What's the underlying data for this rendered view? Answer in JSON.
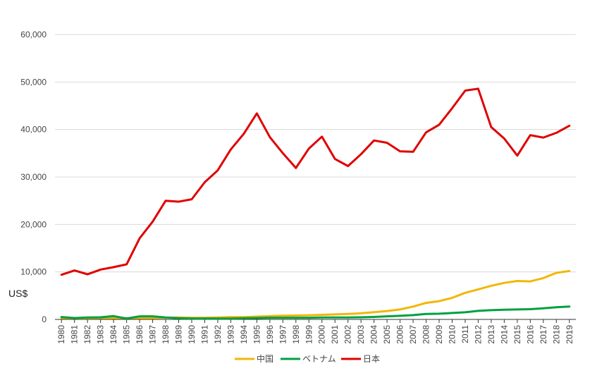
{
  "chart_data": {
    "type": "line",
    "title": "",
    "xlabel": "",
    "ylabel": "US$",
    "ylim": [
      0,
      60000
    ],
    "yticks": [
      0,
      10000,
      20000,
      30000,
      40000,
      50000,
      60000
    ],
    "ytick_labels": [
      "0",
      "10,000",
      "20,000",
      "30,000",
      "40,000",
      "50,000",
      "60,000"
    ],
    "grid": "horizontal",
    "legend": "bottom-center",
    "x": [
      "1980",
      "1981",
      "1982",
      "1983",
      "1984",
      "1985",
      "1986",
      "1987",
      "1988",
      "1989",
      "1990",
      "1991",
      "1992",
      "1993",
      "1994",
      "1995",
      "1996",
      "1997",
      "1998",
      "1999",
      "2000",
      "2001",
      "2002",
      "2003",
      "2004",
      "2005",
      "2006",
      "2007",
      "2008",
      "2009",
      "2010",
      "2011",
      "2012",
      "2013",
      "2014",
      "2015",
      "2016",
      "2017",
      "2018",
      "2019"
    ],
    "series": [
      {
        "name": "中国",
        "color": "#F2B705",
        "values": [
          300,
          280,
          280,
          300,
          300,
          300,
          290,
          300,
          370,
          410,
          350,
          360,
          420,
          500,
          470,
          600,
          700,
          780,
          830,
          880,
          960,
          1050,
          1150,
          1290,
          1510,
          1760,
          2100,
          2700,
          3480,
          3850,
          4550,
          5600,
          6330,
          7080,
          7700,
          8100,
          8000,
          8700,
          9800,
          10200
        ]
      },
      {
        "name": "ベトナム",
        "color": "#00A040",
        "values": [
          500,
          300,
          400,
          450,
          700,
          200,
          650,
          650,
          400,
          250,
          200,
          200,
          200,
          200,
          250,
          300,
          350,
          350,
          350,
          350,
          400,
          400,
          420,
          450,
          520,
          650,
          750,
          900,
          1150,
          1200,
          1350,
          1500,
          1800,
          1950,
          2050,
          2100,
          2150,
          2350,
          2550,
          2700
        ]
      },
      {
        "name": "日本",
        "color": "#E00000",
        "values": [
          9400,
          10300,
          9500,
          10500,
          11000,
          11600,
          17100,
          20600,
          25000,
          24800,
          25300,
          28900,
          31400,
          35800,
          39100,
          43400,
          38400,
          35000,
          31900,
          36000,
          38500,
          33800,
          32300,
          34800,
          37700,
          37200,
          35400,
          35300,
          39400,
          41000,
          44500,
          48200,
          48600,
          40500,
          38100,
          34500,
          38800,
          38300,
          39300,
          40800
        ]
      }
    ]
  }
}
